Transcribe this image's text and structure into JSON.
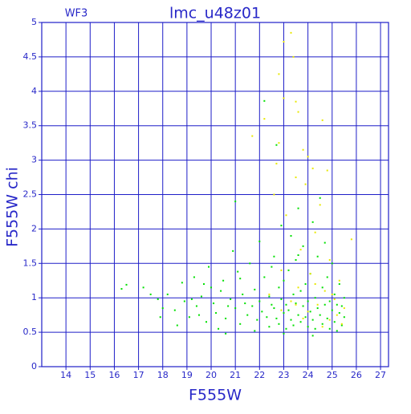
{
  "chart_data": {
    "type": "scatter",
    "title": "lmc_u48z01",
    "subtitle": "WF3",
    "x_label": "F555W",
    "y_label": "F555W chi",
    "xlim": [
      13,
      27.33
    ],
    "ylim": [
      0,
      5
    ],
    "xticks": [
      14,
      15,
      16,
      17,
      18,
      19,
      20,
      21,
      22,
      23,
      24,
      25,
      26,
      27
    ],
    "yticks": [
      0,
      0.5,
      1,
      1.5,
      2,
      2.5,
      3,
      3.5,
      4,
      4.5,
      5
    ],
    "grid": true,
    "grid_color": "#1e1ec8",
    "series": [
      {
        "color": "#00e000",
        "x": [
          16.3,
          16.5,
          17.2,
          17.5,
          17.8,
          18.0,
          18.2,
          18.5,
          18.8,
          18.9,
          19.1,
          19.3,
          19.4,
          19.6,
          19.8,
          19.9,
          20.1,
          20.2,
          20.4,
          20.5,
          20.6,
          20.8,
          20.9,
          21.0,
          21.1,
          21.2,
          21.3,
          21.4,
          21.5,
          21.6,
          21.7,
          21.8,
          21.9,
          22.0,
          22.0,
          22.1,
          22.2,
          22.2,
          22.3,
          22.4,
          22.4,
          22.5,
          22.6,
          22.6,
          22.7,
          22.7,
          22.8,
          22.8,
          22.9,
          22.9,
          23.0,
          23.0,
          23.1,
          23.1,
          23.2,
          23.2,
          23.3,
          23.3,
          23.4,
          23.4,
          23.5,
          23.5,
          23.6,
          23.6,
          23.7,
          23.7,
          23.8,
          23.8,
          23.9,
          23.9,
          24.0,
          24.0,
          24.1,
          24.1,
          24.2,
          24.2,
          24.3,
          24.3,
          24.4,
          24.4,
          24.5,
          24.5,
          24.6,
          24.6,
          24.7,
          24.7,
          24.8,
          24.8,
          24.9,
          24.9,
          25.0,
          25.0,
          25.1,
          25.1,
          25.2,
          25.2,
          25.3,
          25.3,
          25.4,
          25.4,
          25.5,
          25.5,
          19.2,
          19.5,
          20.0,
          20.3,
          20.7,
          21.2,
          21.8,
          22.5,
          23.0,
          23.6,
          24.2,
          21.0,
          20.6,
          19.7,
          18.6,
          17.9
        ],
        "y": [
          1.13,
          1.19,
          1.15,
          1.05,
          0.98,
          0.85,
          1.05,
          0.82,
          1.22,
          0.95,
          0.72,
          1.3,
          0.88,
          1.02,
          0.65,
          1.45,
          0.92,
          0.78,
          1.1,
          1.25,
          0.7,
          0.98,
          1.68,
          0.85,
          1.38,
          0.62,
          1.05,
          0.92,
          0.75,
          1.5,
          0.88,
          1.12,
          0.68,
          0.95,
          1.82,
          0.8,
          1.3,
          3.86,
          0.72,
          1.02,
          0.58,
          0.9,
          1.6,
          0.85,
          3.22,
          0.7,
          1.15,
          0.62,
          0.98,
          2.05,
          0.78,
          1.25,
          0.9,
          0.55,
          1.4,
          0.82,
          0.68,
          1.9,
          1.05,
          0.6,
          0.92,
          1.55,
          0.75,
          2.3,
          1.1,
          0.65,
          0.88,
          1.75,
          0.72,
          1.2,
          0.95,
          0.58,
          1.35,
          0.8,
          2.1,
          0.68,
          1.0,
          0.55,
          0.85,
          1.6,
          0.75,
          2.45,
          1.15,
          0.62,
          0.9,
          1.8,
          0.7,
          1.3,
          0.95,
          0.55,
          0.82,
          1.5,
          1.05,
          0.65,
          0.9,
          0.52,
          0.78,
          1.2,
          0.88,
          0.6,
          0.72,
          1.0,
          0.98,
          0.75,
          1.15,
          0.55,
          0.88,
          1.28,
          0.52,
          1.45,
          0.48,
          1.62,
          0.45,
          2.4,
          0.48,
          1.2,
          0.6,
          0.72
        ]
      },
      {
        "color": "#e8e800",
        "x": [
          23.3,
          23.0,
          23.4,
          22.8,
          23.0,
          23.5,
          23.6,
          22.2,
          24.6,
          21.7,
          22.8,
          23.8,
          24.0,
          22.7,
          24.2,
          24.8,
          23.5,
          23.9,
          22.6,
          24.5,
          23.1,
          24.3,
          25.8,
          23.7,
          24.9,
          22.9,
          24.1,
          25.3,
          23.6,
          24.7,
          22.4,
          25.1,
          23.3,
          24.4,
          25.5,
          22.9,
          24.0,
          25.2,
          23.8,
          24.9,
          25.4,
          24.6,
          23.5,
          25.0,
          24.3
        ],
        "y": [
          4.85,
          4.72,
          4.5,
          4.25,
          3.9,
          3.85,
          3.7,
          3.6,
          3.58,
          3.35,
          3.25,
          3.15,
          3.05,
          2.95,
          2.88,
          2.85,
          2.75,
          2.65,
          2.5,
          2.35,
          2.2,
          1.95,
          1.85,
          1.7,
          1.55,
          1.4,
          1.35,
          1.25,
          1.15,
          1.1,
          1.05,
          0.98,
          0.95,
          0.9,
          0.85,
          0.82,
          0.8,
          0.75,
          0.7,
          0.68,
          0.62,
          0.58,
          0.9,
          1.05,
          1.2
        ]
      }
    ]
  }
}
